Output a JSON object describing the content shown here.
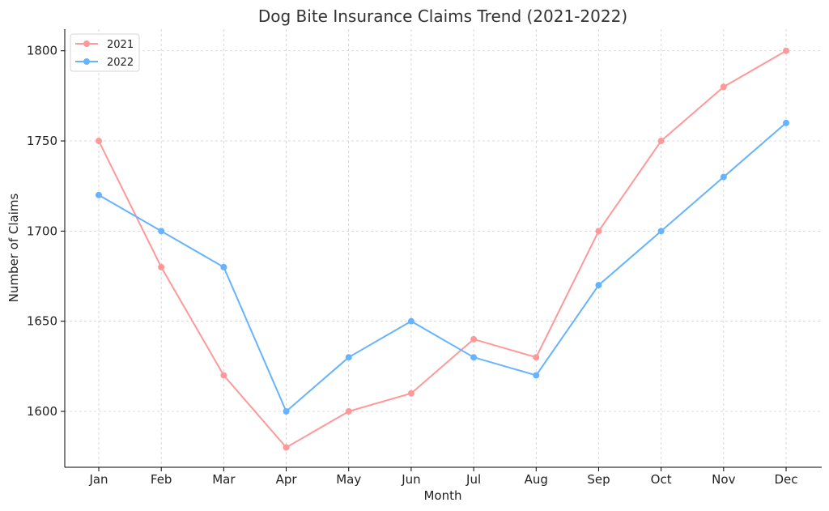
{
  "chart_data": {
    "type": "line",
    "title": "Dog Bite Insurance Claims Trend (2021-2022)",
    "xlabel": "Month",
    "ylabel": "Number of Claims",
    "categories": [
      "Jan",
      "Feb",
      "Mar",
      "Apr",
      "May",
      "Jun",
      "Jul",
      "Aug",
      "Sep",
      "Oct",
      "Nov",
      "Dec"
    ],
    "yticks": [
      1600,
      1650,
      1700,
      1750,
      1800
    ],
    "ylim": [
      1569,
      1812
    ],
    "grid": true,
    "legend_position": "top-left",
    "series": [
      {
        "name": "2021",
        "color": "#ff9999",
        "values": [
          1750,
          1680,
          1620,
          1580,
          1600,
          1610,
          1640,
          1630,
          1700,
          1750,
          1780,
          1800
        ]
      },
      {
        "name": "2022",
        "color": "#66b3ff",
        "values": [
          1720,
          1700,
          1680,
          1600,
          1630,
          1650,
          1630,
          1620,
          1670,
          1700,
          1730,
          1760
        ]
      }
    ]
  }
}
